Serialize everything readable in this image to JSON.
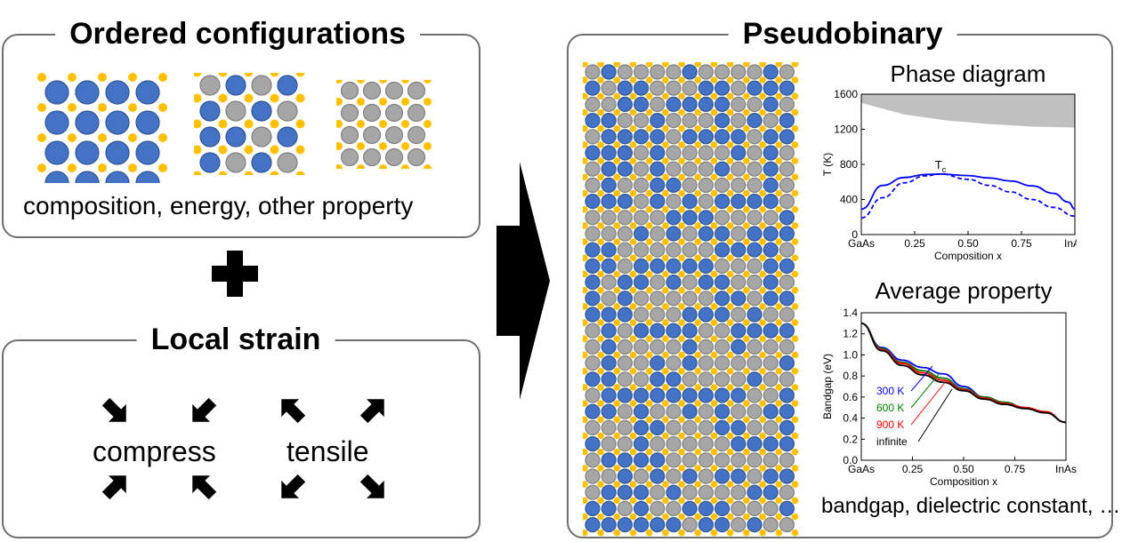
{
  "ordered": {
    "title": "Ordered configurations",
    "caption": "composition, energy, other property"
  },
  "strain": {
    "title": "Local strain",
    "compress": "compress",
    "tensile": "tensile"
  },
  "pseudo": {
    "title": "Pseudobinary",
    "bottom_caption": "bandgap, dielectric constant, …"
  },
  "colors": {
    "blue_atom": "#4472c4",
    "gray_atom": "#a6a6a6",
    "gold_atom": "#ffc000",
    "curve_blue": "#0000ff",
    "gap_fill": "#c0c0c0"
  },
  "chart_data": [
    {
      "type": "line",
      "title": "Phase diagram",
      "xlabel": "Composition x",
      "ylabel": "T (K)",
      "xlim": [
        0,
        1
      ],
      "ylim": [
        0,
        1600
      ],
      "xticks": [
        "GaAs",
        "0.25",
        "0.50",
        "0.75",
        "InAs"
      ],
      "yticks": [
        "0",
        "400",
        "800",
        "1200",
        "1600"
      ],
      "annotation": "Tc",
      "series": [
        {
          "style": "solid",
          "x": [
            0,
            0.1,
            0.2,
            0.3,
            0.37,
            0.5,
            0.6,
            0.7,
            0.8,
            0.9,
            0.97,
            1.0
          ],
          "y": [
            290,
            560,
            650,
            685,
            690,
            672,
            645,
            610,
            555,
            470,
            370,
            290
          ]
        },
        {
          "style": "dashed",
          "x": [
            0,
            0.1,
            0.2,
            0.3,
            0.37,
            0.5,
            0.6,
            0.7,
            0.8,
            0.9,
            1.0
          ],
          "y": [
            190,
            420,
            590,
            670,
            690,
            630,
            560,
            485,
            400,
            310,
            210
          ]
        }
      ],
      "band": {
        "x": [
          0,
          0.2,
          0.4,
          0.6,
          0.8,
          1.0
        ],
        "lower": [
          1500,
          1370,
          1300,
          1260,
          1230,
          1220
        ],
        "upper": [
          1600,
          1600,
          1600,
          1600,
          1600,
          1600
        ]
      }
    },
    {
      "type": "line",
      "title": "Average property",
      "xlabel": "Composition x",
      "ylabel": "Bandgap (eV)",
      "xlim": [
        0,
        1
      ],
      "ylim": [
        0,
        1.4
      ],
      "xticks": [
        "GaAs",
        "0.25",
        "0.50",
        "0.75",
        "InAs"
      ],
      "yticks": [
        "0.0",
        "0.2",
        "0.4",
        "0.6",
        "0.8",
        "1.0",
        "1.2",
        "1.4"
      ],
      "series": [
        {
          "name": "300 K",
          "color": "#0000ff",
          "x": [
            0,
            0.1,
            0.2,
            0.3,
            0.4,
            0.5,
            0.6,
            0.7,
            0.8,
            0.9,
            1.0
          ],
          "y": [
            1.3,
            1.07,
            0.95,
            0.88,
            0.82,
            0.7,
            0.6,
            0.55,
            0.5,
            0.46,
            0.36
          ]
        },
        {
          "name": "600 K",
          "color": "#008000",
          "x": [
            0,
            0.1,
            0.2,
            0.3,
            0.4,
            0.5,
            0.6,
            0.7,
            0.8,
            0.9,
            1.0
          ],
          "y": [
            1.3,
            1.06,
            0.93,
            0.85,
            0.78,
            0.68,
            0.6,
            0.55,
            0.5,
            0.46,
            0.36
          ]
        },
        {
          "name": "900 K",
          "color": "#ff0000",
          "x": [
            0,
            0.1,
            0.2,
            0.3,
            0.4,
            0.5,
            0.6,
            0.7,
            0.8,
            0.9,
            1.0
          ],
          "y": [
            1.3,
            1.05,
            0.92,
            0.83,
            0.76,
            0.67,
            0.59,
            0.54,
            0.5,
            0.46,
            0.36
          ]
        },
        {
          "name": "infinite",
          "color": "#000000",
          "x": [
            0,
            0.1,
            0.2,
            0.3,
            0.4,
            0.5,
            0.6,
            0.7,
            0.8,
            0.9,
            1.0
          ],
          "y": [
            1.3,
            1.04,
            0.9,
            0.81,
            0.74,
            0.66,
            0.58,
            0.53,
            0.49,
            0.45,
            0.36
          ]
        }
      ]
    }
  ]
}
